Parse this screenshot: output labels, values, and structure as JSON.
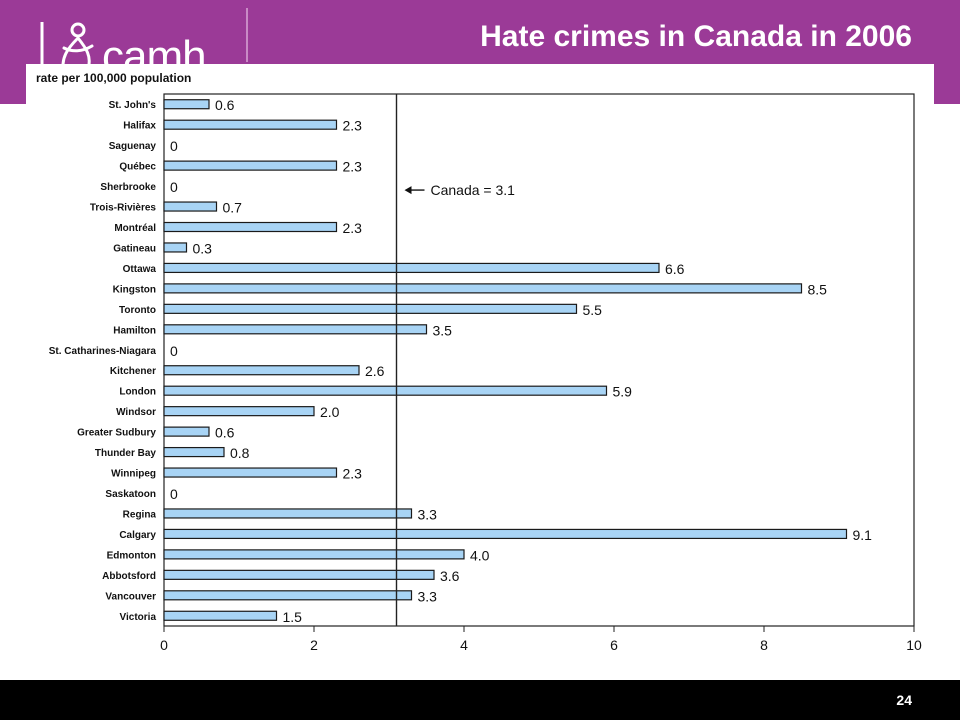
{
  "header": {
    "title": "Hate crimes in Canada in 2006",
    "logo_text": "camh"
  },
  "footer": {
    "page_number": "24"
  },
  "colors": {
    "header_bg": "#9b3a97",
    "bar_fill": "#a8d4f5",
    "bar_stroke": "#1a1a1a",
    "footer_bg": "#000000"
  },
  "chart_data": {
    "type": "bar",
    "orientation": "horizontal",
    "ylabel": "rate per 100,000 population",
    "xlim": [
      0,
      10
    ],
    "xticks": [
      0,
      2,
      4,
      6,
      8,
      10
    ],
    "categories": [
      "St. John's",
      "Halifax",
      "Saguenay",
      "Québec",
      "Sherbrooke",
      "Trois-Rivières",
      "Montréal",
      "Gatineau",
      "Ottawa",
      "Kingston",
      "Toronto",
      "Hamilton",
      "St. Catharines-Niagara",
      "Kitchener",
      "London",
      "Windsor",
      "Greater Sudbury",
      "Thunder Bay",
      "Winnipeg",
      "Saskatoon",
      "Regina",
      "Calgary",
      "Edmonton",
      "Abbotsford",
      "Vancouver",
      "Victoria"
    ],
    "values": [
      0.6,
      2.3,
      0,
      2.3,
      0,
      0.7,
      2.3,
      0.3,
      6.6,
      8.5,
      5.5,
      3.5,
      0,
      2.6,
      5.9,
      2.0,
      0.6,
      0.8,
      2.3,
      0,
      3.3,
      9.1,
      4.0,
      3.6,
      3.3,
      1.5
    ],
    "value_labels": [
      "0.6",
      "2.3",
      "0",
      "2.3",
      "0",
      "0.7",
      "2.3",
      "0.3",
      "6.6",
      "8.5",
      "5.5",
      "3.5",
      "0",
      "2.6",
      "5.9",
      "2.0",
      "0.6",
      "0.8",
      "2.3",
      "0",
      "3.3",
      "9.1",
      "4.0",
      "3.6",
      "3.3",
      "1.5"
    ],
    "reference_line": {
      "value": 3.1,
      "label": "Canada = 3.1"
    },
    "grid": false
  }
}
